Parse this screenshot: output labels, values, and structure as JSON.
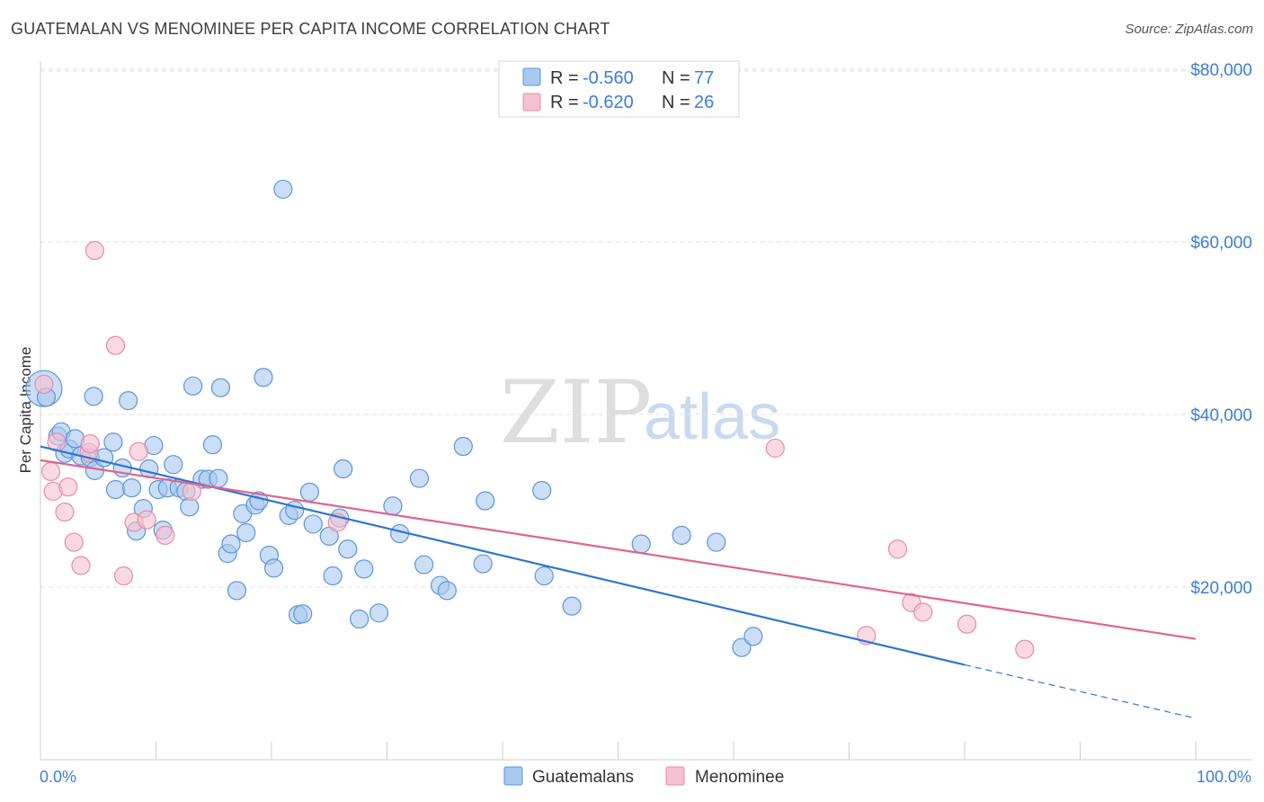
{
  "header": {
    "title": "GUATEMALAN VS MENOMINEE PER CAPITA INCOME CORRELATION CHART",
    "source": "Source: ZipAtlas.com"
  },
  "watermark": {
    "zip": "ZIP",
    "atlas": "atlas"
  },
  "colors": {
    "guatemalan_fill": "#a9c8ef",
    "guatemalan_stroke": "#5b95dc",
    "guatemalan_line": "#2f74d0",
    "menominee_fill": "#f6c0d0",
    "menominee_stroke": "#e88aa7",
    "menominee_line": "#e4628c",
    "axis_text": "#3b7dd8"
  },
  "legend": {
    "rows": [
      {
        "r_label": "R = ",
        "r_value": "-0.560",
        "n_label": "N = ",
        "n_value": "77"
      },
      {
        "r_label": "R = ",
        "r_value": "-0.620",
        "n_label": "N = ",
        "n_value": "26"
      }
    ]
  },
  "bottom_legend": {
    "series1": "Guatemalans",
    "series2": "Menominee"
  },
  "chart_data": {
    "type": "scatter",
    "title": "GUATEMALAN VS MENOMINEE PER CAPITA INCOME CORRELATION CHART",
    "xlabel": "",
    "ylabel": "Per Capita Income",
    "xlim": [
      0,
      100
    ],
    "ylim": [
      0,
      82000
    ],
    "x_tick_labels": [
      "0.0%",
      "100.0%"
    ],
    "y_ticks": [
      20000,
      40000,
      60000,
      80000
    ],
    "y_tick_labels": [
      "$20,000",
      "$40,000",
      "$60,000",
      "$80,000"
    ],
    "grid": true,
    "series": [
      {
        "name": "Guatemalans",
        "r": -0.56,
        "n": 77,
        "trend": {
          "x0": 0,
          "y0": 36300,
          "x1": 80,
          "y1": 11000,
          "dash_to_x": 100,
          "dash_to_y": 4800
        },
        "points": [
          [
            0.3,
            43000,
            20
          ],
          [
            0.5,
            42000,
            10
          ],
          [
            1.5,
            37500,
            10
          ],
          [
            1.8,
            38000,
            10
          ],
          [
            2.1,
            35500,
            10
          ],
          [
            2.5,
            36000,
            10
          ],
          [
            3.0,
            37200,
            10
          ],
          [
            3.5,
            35200,
            10
          ],
          [
            4.3,
            35000,
            10
          ],
          [
            4.7,
            33500,
            10
          ],
          [
            4.6,
            42100,
            10
          ],
          [
            5.5,
            35000,
            10
          ],
          [
            6.3,
            36800,
            10
          ],
          [
            6.5,
            31300,
            10
          ],
          [
            7.1,
            33800,
            10
          ],
          [
            7.6,
            41600,
            10
          ],
          [
            7.9,
            31500,
            10
          ],
          [
            8.3,
            26500,
            10
          ],
          [
            8.9,
            29100,
            10
          ],
          [
            9.4,
            33700,
            10
          ],
          [
            9.8,
            36400,
            10
          ],
          [
            10.2,
            31300,
            10
          ],
          [
            10.6,
            26600,
            10
          ],
          [
            11.0,
            31500,
            10
          ],
          [
            11.5,
            34200,
            10
          ],
          [
            12.0,
            31500,
            10
          ],
          [
            12.6,
            31100,
            10
          ],
          [
            12.9,
            29300,
            10
          ],
          [
            13.2,
            43300,
            10
          ],
          [
            14.0,
            32500,
            10
          ],
          [
            14.5,
            32500,
            10
          ],
          [
            14.9,
            36500,
            10
          ],
          [
            15.4,
            32600,
            10
          ],
          [
            15.6,
            43100,
            10
          ],
          [
            16.2,
            23900,
            10
          ],
          [
            16.5,
            25000,
            10
          ],
          [
            17.0,
            19600,
            10
          ],
          [
            17.5,
            28500,
            10
          ],
          [
            17.8,
            26300,
            10
          ],
          [
            18.6,
            29500,
            10
          ],
          [
            18.9,
            30000,
            10
          ],
          [
            19.3,
            44300,
            10
          ],
          [
            19.8,
            23700,
            10
          ],
          [
            20.2,
            22200,
            10
          ],
          [
            21.0,
            66100,
            10
          ],
          [
            21.5,
            28300,
            10
          ],
          [
            22.0,
            28900,
            10
          ],
          [
            22.3,
            16800,
            10
          ],
          [
            22.7,
            16900,
            10
          ],
          [
            23.3,
            31000,
            10
          ],
          [
            23.6,
            27300,
            10
          ],
          [
            25.0,
            25900,
            10
          ],
          [
            25.3,
            21300,
            10
          ],
          [
            25.9,
            28000,
            10
          ],
          [
            26.2,
            33700,
            10
          ],
          [
            26.6,
            24400,
            10
          ],
          [
            27.6,
            16300,
            10
          ],
          [
            28.0,
            22100,
            10
          ],
          [
            29.3,
            17000,
            10
          ],
          [
            30.5,
            29400,
            10
          ],
          [
            31.1,
            26200,
            10
          ],
          [
            32.8,
            32600,
            10
          ],
          [
            33.2,
            22600,
            10
          ],
          [
            34.6,
            20200,
            10
          ],
          [
            35.2,
            19600,
            10
          ],
          [
            36.6,
            36300,
            10
          ],
          [
            38.3,
            22700,
            10
          ],
          [
            38.5,
            30000,
            10
          ],
          [
            43.4,
            31200,
            10
          ],
          [
            43.6,
            21300,
            10
          ],
          [
            46.0,
            17800,
            10
          ],
          [
            52.0,
            25000,
            10
          ],
          [
            55.5,
            26000,
            10
          ],
          [
            58.5,
            25200,
            10
          ],
          [
            60.7,
            13000,
            10
          ],
          [
            61.7,
            14300,
            10
          ]
        ]
      },
      {
        "name": "Menominee",
        "r": -0.62,
        "n": 26,
        "trend": {
          "x0": 0,
          "y0": 34700,
          "x1": 100,
          "y1": 14000
        },
        "points": [
          [
            0.3,
            43500,
            10
          ],
          [
            0.9,
            33400,
            10
          ],
          [
            1.1,
            31100,
            10
          ],
          [
            1.4,
            36800,
            10
          ],
          [
            2.1,
            28700,
            10
          ],
          [
            2.4,
            31600,
            10
          ],
          [
            2.9,
            25200,
            10
          ],
          [
            3.5,
            22500,
            10
          ],
          [
            4.2,
            35600,
            10
          ],
          [
            4.3,
            36600,
            10
          ],
          [
            4.7,
            59000,
            10
          ],
          [
            6.5,
            48000,
            10
          ],
          [
            7.2,
            21300,
            10
          ],
          [
            8.1,
            27500,
            10
          ],
          [
            8.5,
            35700,
            10
          ],
          [
            9.2,
            27800,
            10
          ],
          [
            10.8,
            26000,
            10
          ],
          [
            13.1,
            31100,
            10
          ],
          [
            25.7,
            27500,
            10
          ],
          [
            63.6,
            36100,
            10
          ],
          [
            71.5,
            14400,
            10
          ],
          [
            74.2,
            24400,
            10
          ],
          [
            75.4,
            18200,
            10
          ],
          [
            76.4,
            17100,
            10
          ],
          [
            80.2,
            15700,
            10
          ],
          [
            85.2,
            12800,
            10
          ]
        ]
      }
    ]
  }
}
